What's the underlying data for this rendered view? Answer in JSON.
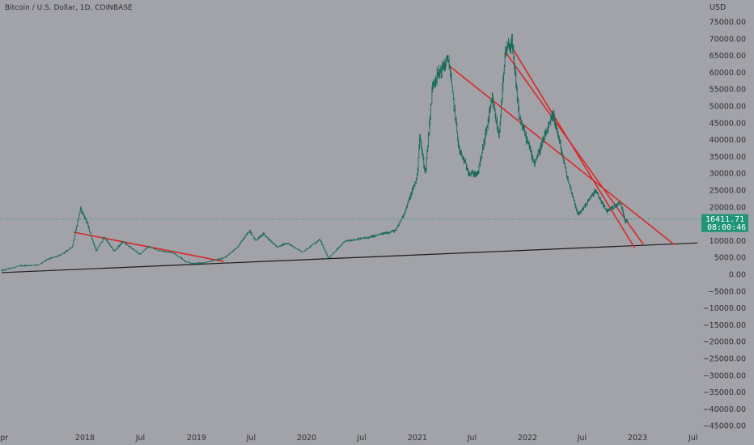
{
  "header": {
    "symbol_title": "Bitcoin / U.S. Dollar, 1D, COINBASE",
    "currency": "USD"
  },
  "price_tag": {
    "price": "16411.71",
    "countdown": "08:00:46",
    "color": "#1f9478"
  },
  "colors": {
    "background": "#a2a3a8",
    "candle": "#1a6b5c",
    "trendline_red": "#d72a2a",
    "support_line": "#1a1a1a",
    "dotted_price_line": "#1f9478"
  },
  "chart_data": {
    "type": "line",
    "x_axis": {
      "tick_labels": [
        "Apr",
        "2018",
        "Jul",
        "2019",
        "Jul",
        "2020",
        "Jul",
        "2021",
        "Jul",
        "2022",
        "Jul",
        "2023",
        "Jul"
      ],
      "range": [
        "2017-04-01",
        "2023-07-15"
      ]
    },
    "y_axis": {
      "unit": "USD",
      "tick_labels": [
        "75000.00",
        "70000.00",
        "65000.00",
        "60000.00",
        "55000.00",
        "50000.00",
        "45000.00",
        "40000.00",
        "35000.00",
        "30000.00",
        "25000.00",
        "20000.00",
        "15000.00",
        "10000.00",
        "5000.00",
        "0.00",
        "−5000.00",
        "−10000.00",
        "−15000.00",
        "−20000.00",
        "−25000.00",
        "−30000.00",
        "−35000.00",
        "−40000.00",
        "−45000.00"
      ],
      "range": [
        -47000,
        79000
      ]
    },
    "series": [
      {
        "points": [
          [
            "2017-04-01",
            1100
          ],
          [
            "2017-06-01",
            2500
          ],
          [
            "2017-08-01",
            2800
          ],
          [
            "2017-09-01",
            4500
          ],
          [
            "2017-10-15",
            5800
          ],
          [
            "2017-11-20",
            8200
          ],
          [
            "2017-12-17",
            19500
          ],
          [
            "2018-01-05",
            16000
          ],
          [
            "2018-02-06",
            6900
          ],
          [
            "2018-03-05",
            11000
          ],
          [
            "2018-04-06",
            6800
          ],
          [
            "2018-05-05",
            9700
          ],
          [
            "2018-06-29",
            5900
          ],
          [
            "2018-07-25",
            8200
          ],
          [
            "2018-09-01",
            7000
          ],
          [
            "2018-10-15",
            6500
          ],
          [
            "2018-11-25",
            3800
          ],
          [
            "2018-12-15",
            3200
          ],
          [
            "2019-02-01",
            3500
          ],
          [
            "2019-04-05",
            5000
          ],
          [
            "2019-05-15",
            8000
          ],
          [
            "2019-06-26",
            13000
          ],
          [
            "2019-07-15",
            10000
          ],
          [
            "2019-08-10",
            12000
          ],
          [
            "2019-09-26",
            8000
          ],
          [
            "2019-10-26",
            9300
          ],
          [
            "2019-12-18",
            6600
          ],
          [
            "2020-02-13",
            10300
          ],
          [
            "2020-03-13",
            4800
          ],
          [
            "2020-05-08",
            9900
          ],
          [
            "2020-07-27",
            11000
          ],
          [
            "2020-09-01",
            11900
          ],
          [
            "2020-10-21",
            13000
          ],
          [
            "2020-11-20",
            18500
          ],
          [
            "2020-12-31",
            29000
          ],
          [
            "2021-01-08",
            41000
          ],
          [
            "2021-01-27",
            30000
          ],
          [
            "2021-02-21",
            57000
          ],
          [
            "2021-04-14",
            64000
          ],
          [
            "2021-05-19",
            37000
          ],
          [
            "2021-06-22",
            30000
          ],
          [
            "2021-07-20",
            29800
          ],
          [
            "2021-09-06",
            52000
          ],
          [
            "2021-09-28",
            41000
          ],
          [
            "2021-10-20",
            66000
          ],
          [
            "2021-11-10",
            69000
          ],
          [
            "2021-12-04",
            47000
          ],
          [
            "2022-01-24",
            33000
          ],
          [
            "2022-03-28",
            47500
          ],
          [
            "2022-05-12",
            29000
          ],
          [
            "2022-06-18",
            17600
          ],
          [
            "2022-08-14",
            24800
          ],
          [
            "2022-09-20",
            18800
          ],
          [
            "2022-11-05",
            21300
          ],
          [
            "2022-11-21",
            15800
          ],
          [
            "2022-12-01",
            16411.71
          ]
        ]
      }
    ],
    "drawings": [
      {
        "kind": "trendline",
        "color": "red",
        "from": [
          "2017-11-25",
          12500
        ],
        "to": [
          "2019-04-01",
          3800
        ]
      },
      {
        "kind": "trendline",
        "color": "red",
        "from": [
          "2021-04-15",
          62000
        ],
        "to": [
          "2023-05-01",
          8800
        ]
      },
      {
        "kind": "trendline",
        "color": "red",
        "from": [
          "2021-10-20",
          66000
        ],
        "to": [
          "2023-01-20",
          8900
        ]
      },
      {
        "kind": "trendline",
        "color": "red",
        "from": [
          "2021-11-10",
          67500
        ],
        "to": [
          "2022-12-22",
          7900
        ]
      },
      {
        "kind": "trendline",
        "color": "black",
        "from": [
          "2017-04-01",
          500
        ],
        "to": [
          "2023-07-15",
          9300
        ]
      },
      {
        "kind": "horizontal_dotted",
        "color": "green",
        "value": 16411.71
      }
    ],
    "grid": false,
    "legend": "none"
  }
}
